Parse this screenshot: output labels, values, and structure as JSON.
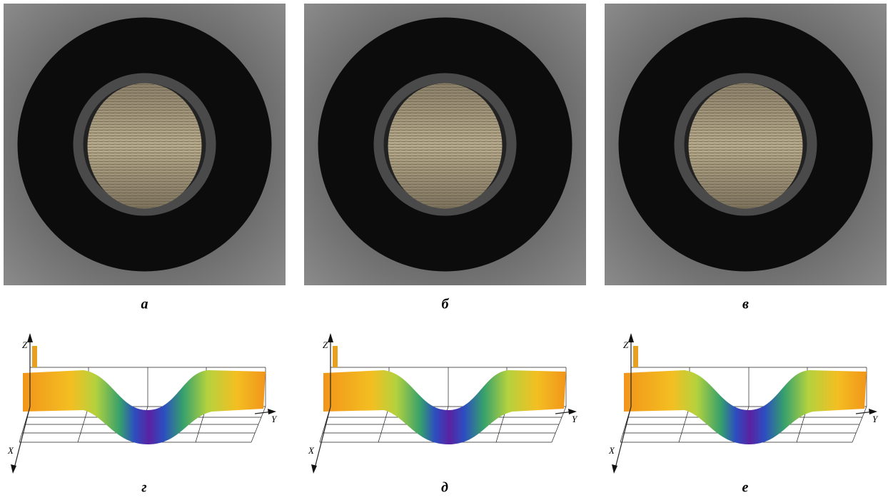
{
  "photos": [
    {
      "label": "а"
    },
    {
      "label": "б"
    },
    {
      "label": "в"
    }
  ],
  "profiles": [
    {
      "label": "г",
      "z_axis": "Z",
      "x_axis": "X",
      "y_axis": "Y"
    },
    {
      "label": "д",
      "z_axis": "Z",
      "x_axis": "X",
      "y_axis": "Y"
    },
    {
      "label": "е",
      "z_axis": "Z",
      "x_axis": "X",
      "y_axis": "Y"
    }
  ]
}
